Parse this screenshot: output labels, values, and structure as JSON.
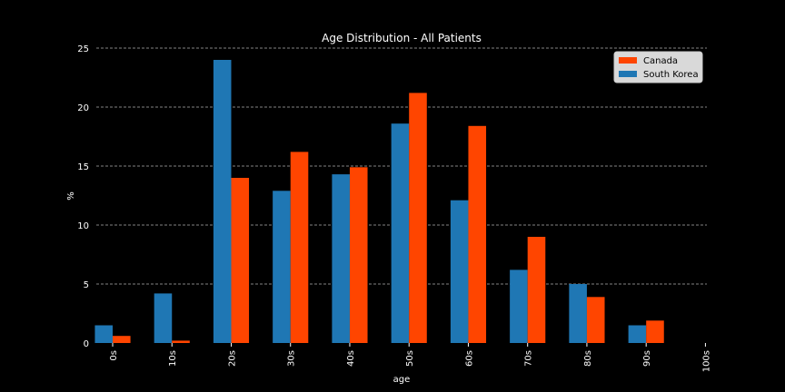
{
  "chart_data": {
    "type": "bar",
    "title": "Age Distribution - All Patients",
    "xlabel": "age",
    "ylabel": "%",
    "categories": [
      "0s",
      "10s",
      "20s",
      "30s",
      "40s",
      "50s",
      "60s",
      "70s",
      "80s",
      "90s",
      "100s"
    ],
    "ylim": [
      0,
      25
    ],
    "yticks": [
      0,
      5,
      10,
      15,
      20,
      25
    ],
    "grid": "horizontal-dashed",
    "legend_position": "top-right",
    "series": [
      {
        "name": "South Korea",
        "color": "#1f77b4",
        "values": [
          1.5,
          4.2,
          24.0,
          12.9,
          14.3,
          18.6,
          12.1,
          6.2,
          5.0,
          1.5,
          0.0
        ]
      },
      {
        "name": "Canada",
        "color": "#ff4500",
        "values": [
          0.6,
          0.2,
          14.0,
          16.2,
          14.9,
          21.2,
          18.4,
          9.0,
          3.9,
          1.9,
          0.0
        ]
      }
    ],
    "legend_order": [
      "Canada",
      "South Korea"
    ]
  }
}
